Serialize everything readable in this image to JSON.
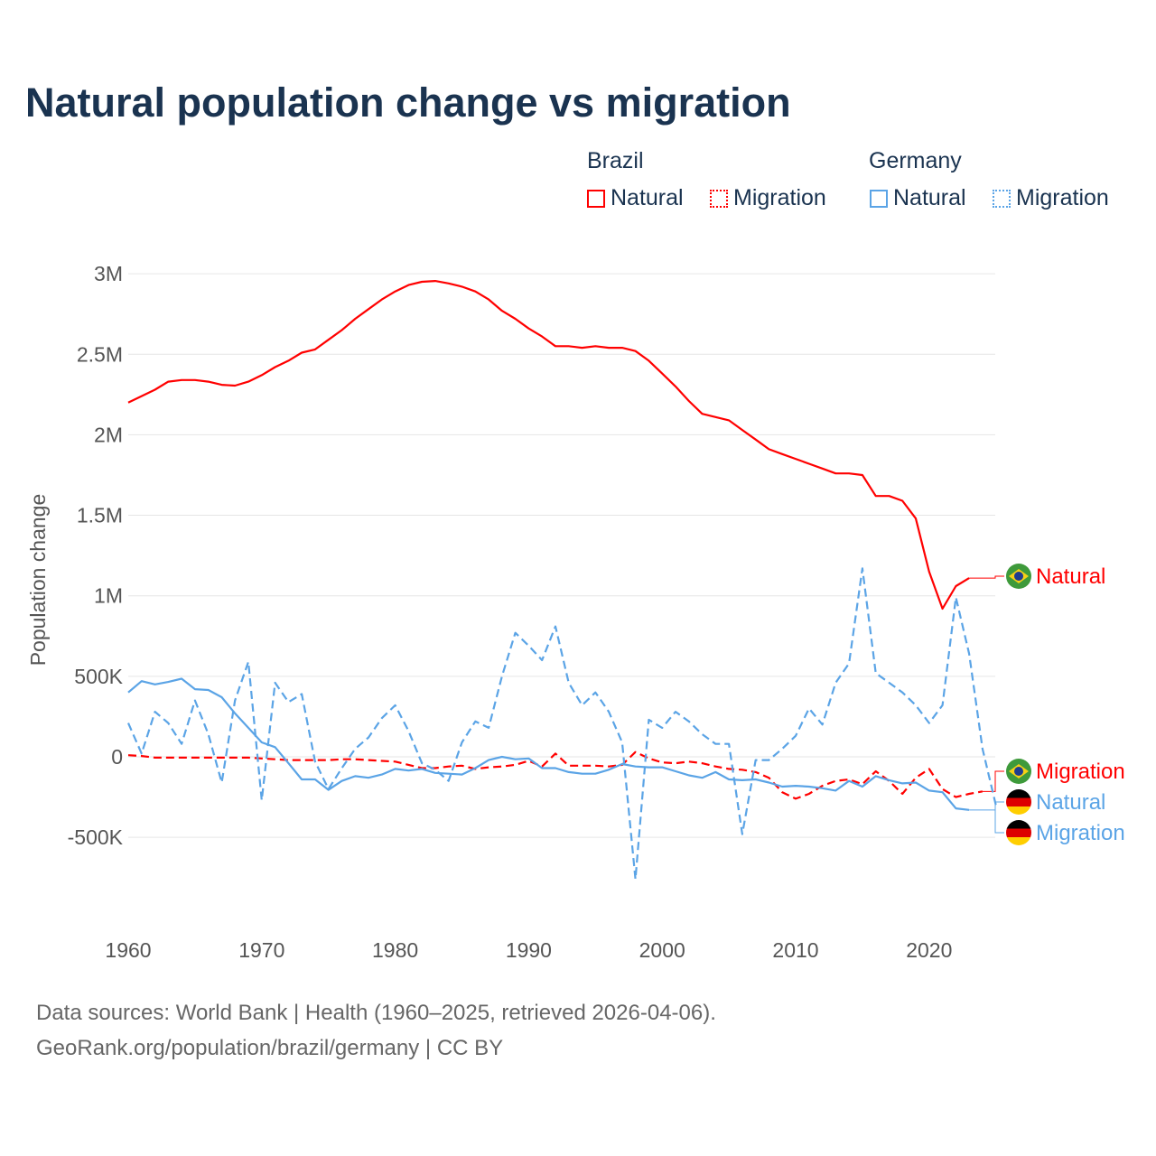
{
  "title": "Natural population change vs migration",
  "legend": {
    "groups": [
      {
        "name": "Brazil",
        "items": [
          "Natural",
          "Migration"
        ]
      },
      {
        "name": "Germany",
        "items": [
          "Natural",
          "Migration"
        ]
      }
    ]
  },
  "footer": {
    "line1": "Data sources: World Bank | Health (1960–2025, retrieved 2026-04-06).",
    "line2": "GeoRank.org/population/brazil/germany | CC BY"
  },
  "colors": {
    "brazil": "#ff0000",
    "germany": "#5ba4e6"
  },
  "chart_data": {
    "type": "line",
    "title": "Natural population change vs migration",
    "ylabel": "Population change",
    "xlabel": "",
    "xlim": [
      1960,
      2025
    ],
    "ylim": [
      -1000000,
      3000000
    ],
    "xticks": [
      1960,
      1970,
      1980,
      1990,
      2000,
      2010,
      2020
    ],
    "xtick_labels": [
      "1960",
      "1970",
      "1980",
      "1990",
      "2000",
      "2010",
      "2020"
    ],
    "yticks": [
      -500000,
      0,
      500000,
      1000000,
      1500000,
      2000000,
      2500000,
      3000000
    ],
    "ytick_labels": [
      "-500K",
      "0",
      "500K",
      "1M",
      "1.5M",
      "2M",
      "2.5M",
      "3M"
    ],
    "grid": true,
    "legend_placement": "top-right",
    "series": [
      {
        "name": "Brazil Natural",
        "country": "Brazil",
        "kind": "Natural",
        "start": 1960,
        "end_label": "Natural",
        "values": [
          2200000,
          2240000,
          2280000,
          2330000,
          2340000,
          2340000,
          2330000,
          2310000,
          2305000,
          2330000,
          2370000,
          2420000,
          2460000,
          2510000,
          2530000,
          2590000,
          2650000,
          2720000,
          2780000,
          2840000,
          2890000,
          2930000,
          2950000,
          2955000,
          2940000,
          2920000,
          2890000,
          2840000,
          2770000,
          2720000,
          2660000,
          2610000,
          2550000,
          2550000,
          2540000,
          2550000,
          2540000,
          2540000,
          2520000,
          2460000,
          2380000,
          2300000,
          2210000,
          2130000,
          2110000,
          2090000,
          2030000,
          1970000,
          1910000,
          1880000,
          1850000,
          1820000,
          1790000,
          1760000,
          1760000,
          1750000,
          1620000,
          1620000,
          1590000,
          1480000,
          1150000,
          920000,
          1060000,
          1110000
        ]
      },
      {
        "name": "Brazil Migration",
        "country": "Brazil",
        "kind": "Migration",
        "start": 1960,
        "end_label": "Migration",
        "values": [
          10000,
          5000,
          -5000,
          -5000,
          -5000,
          -5000,
          -5000,
          -5000,
          -5000,
          -5000,
          -10000,
          -15000,
          -20000,
          -20000,
          -20000,
          -20000,
          -15000,
          -15000,
          -20000,
          -25000,
          -30000,
          -50000,
          -70000,
          -70000,
          -60000,
          -55000,
          -75000,
          -65000,
          -60000,
          -50000,
          -25000,
          -60000,
          20000,
          -55000,
          -55000,
          -55000,
          -60000,
          -50000,
          30000,
          -10000,
          -35000,
          -40000,
          -30000,
          -40000,
          -60000,
          -75000,
          -80000,
          -95000,
          -130000,
          -220000,
          -260000,
          -230000,
          -180000,
          -150000,
          -140000,
          -170000,
          -90000,
          -150000,
          -230000,
          -130000,
          -75000,
          -200000,
          -250000,
          -230000,
          -215000
        ]
      },
      {
        "name": "Germany Natural",
        "country": "Germany",
        "kind": "Natural",
        "start": 1960,
        "end_label": "Natural",
        "values": [
          400000,
          470000,
          450000,
          465000,
          485000,
          420000,
          415000,
          370000,
          270000,
          180000,
          90000,
          60000,
          -40000,
          -140000,
          -140000,
          -205000,
          -150000,
          -120000,
          -130000,
          -110000,
          -75000,
          -85000,
          -75000,
          -100000,
          -105000,
          -110000,
          -70000,
          -20000,
          0,
          -15000,
          -10000,
          -70000,
          -70000,
          -95000,
          -105000,
          -105000,
          -80000,
          -45000,
          -60000,
          -65000,
          -65000,
          -90000,
          -115000,
          -130000,
          -95000,
          -140000,
          -145000,
          -140000,
          -160000,
          -185000,
          -180000,
          -185000,
          -195000,
          -210000,
          -150000,
          -185000,
          -120000,
          -145000,
          -165000,
          -160000,
          -210000,
          -220000,
          -320000,
          -330000
        ]
      },
      {
        "name": "Germany Migration",
        "country": "Germany",
        "kind": "Migration",
        "start": 1960,
        "end_label": "Migration",
        "values": [
          210000,
          20000,
          280000,
          210000,
          80000,
          350000,
          140000,
          -160000,
          350000,
          590000,
          -270000,
          460000,
          340000,
          390000,
          -30000,
          -200000,
          -70000,
          50000,
          120000,
          240000,
          320000,
          160000,
          -40000,
          -80000,
          -150000,
          90000,
          220000,
          180000,
          500000,
          770000,
          690000,
          600000,
          810000,
          460000,
          320000,
          400000,
          280000,
          90000,
          -760000,
          230000,
          180000,
          280000,
          220000,
          140000,
          80000,
          80000,
          -480000,
          -20000,
          -20000,
          50000,
          130000,
          300000,
          200000,
          460000,
          580000,
          1170000,
          520000,
          460000,
          400000,
          320000,
          210000,
          320000,
          990000,
          640000,
          50000,
          -300000
        ]
      }
    ]
  }
}
